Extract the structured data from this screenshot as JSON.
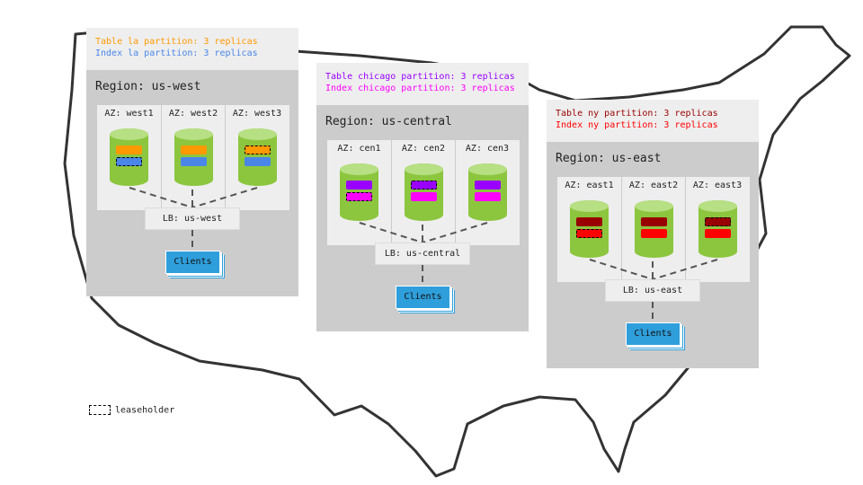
{
  "regions": [
    {
      "id": "west",
      "title": "Region: us-west",
      "table_line": "Table la partition: 3 replicas",
      "index_line": "Index la partition: 3 replicas",
      "table_color": "#ff9900",
      "index_color": "#4a86e8",
      "azs": [
        {
          "label": "AZ: west1",
          "leaseholder": "index"
        },
        {
          "label": "AZ: west2",
          "leaseholder": "none"
        },
        {
          "label": "AZ: west3",
          "leaseholder": "table"
        }
      ],
      "lb": "LB: us-west",
      "clients": "Clients"
    },
    {
      "id": "central",
      "title": "Region: us-central",
      "table_line": "Table chicago partition: 3 replicas",
      "index_line": "Index chicago partition: 3 replicas",
      "table_color": "#9900ff",
      "index_color": "#ff00ff",
      "azs": [
        {
          "label": "AZ: cen1",
          "leaseholder": "index"
        },
        {
          "label": "AZ: cen2",
          "leaseholder": "table"
        },
        {
          "label": "AZ: cen3",
          "leaseholder": "none"
        }
      ],
      "lb": "LB: us-central",
      "clients": "Clients"
    },
    {
      "id": "east",
      "title": "Region: us-east",
      "table_line": "Table ny partition: 3 replicas",
      "index_line": "Index ny partition: 3 replicas",
      "table_color": "#990000",
      "index_color": "#ff0000",
      "azs": [
        {
          "label": "AZ: east1",
          "leaseholder": "index"
        },
        {
          "label": "AZ: east2",
          "leaseholder": "none"
        },
        {
          "label": "AZ: east3",
          "leaseholder": "table"
        }
      ],
      "lb": "LB: us-east",
      "clients": "Clients"
    }
  ],
  "legend": {
    "label": "leaseholder"
  }
}
